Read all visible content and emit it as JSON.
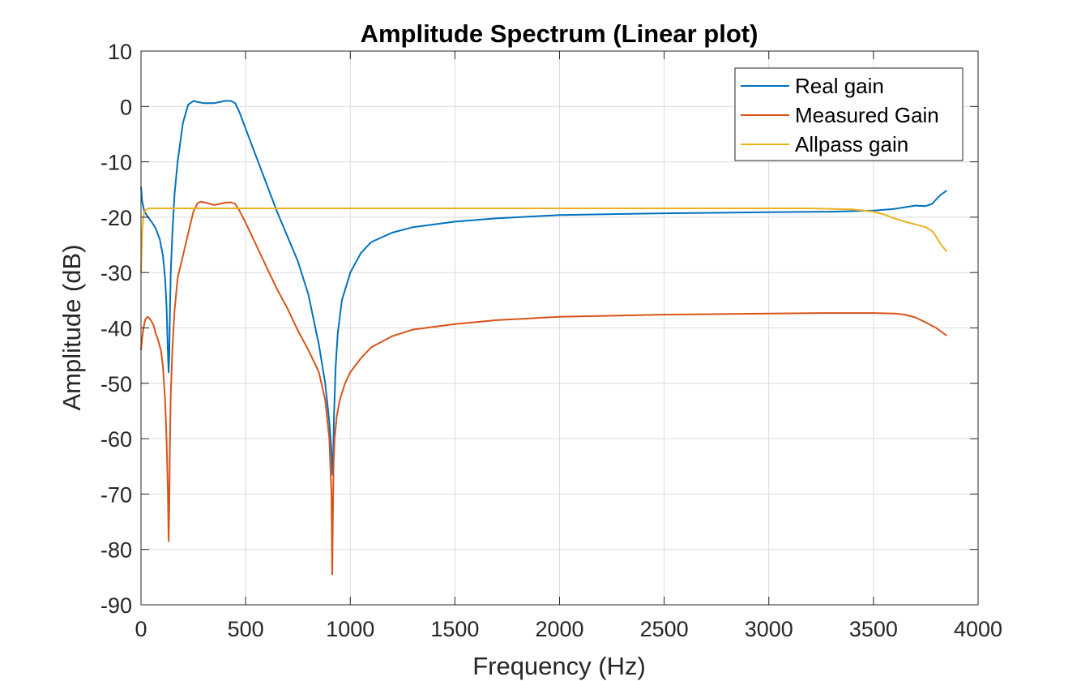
{
  "chart_data": {
    "type": "line",
    "title": "Amplitude Spectrum (Linear plot)",
    "xlabel": "Frequency (Hz)",
    "ylabel": "Amplitude (dB)",
    "xlim": [
      0,
      4000
    ],
    "ylim": [
      -90,
      10
    ],
    "xticks": [
      0,
      500,
      1000,
      1500,
      2000,
      2500,
      3000,
      3500,
      4000
    ],
    "yticks": [
      10,
      0,
      -10,
      -20,
      -30,
      -40,
      -50,
      -60,
      -70,
      -80,
      -90
    ],
    "xtick_labels": [
      "0",
      "500",
      "1000",
      "1500",
      "2000",
      "2500",
      "3000",
      "3500",
      "4000"
    ],
    "ytick_labels": [
      "10",
      "0",
      "-10",
      "-20",
      "-30",
      "-40",
      "-50",
      "-60",
      "-70",
      "-80",
      "-90"
    ],
    "grid": true,
    "legend_position": "top-right",
    "series": [
      {
        "name": "Real gain",
        "color": "#0072BD",
        "x": [
          0,
          5,
          15,
          30,
          50,
          70,
          90,
          105,
          115,
          122,
          128,
          132,
          135,
          138,
          142,
          150,
          160,
          175,
          200,
          225,
          250,
          270,
          285,
          300,
          320,
          350,
          400,
          430,
          450,
          470,
          500,
          550,
          600,
          650,
          700,
          750,
          800,
          850,
          880,
          900,
          910,
          915,
          918,
          922,
          930,
          940,
          960,
          1000,
          1050,
          1100,
          1200,
          1300,
          1500,
          1700,
          2000,
          2500,
          3000,
          3300,
          3500,
          3600,
          3650,
          3700,
          3750,
          3780,
          3800,
          3820,
          3850
        ],
        "y": [
          -14.5,
          -17,
          -18.8,
          -19.8,
          -20.8,
          -22,
          -24,
          -27,
          -31,
          -36,
          -44,
          -48,
          -45,
          -38,
          -30,
          -23,
          -16,
          -10,
          -3,
          0.3,
          1,
          0.8,
          0.7,
          0.6,
          0.6,
          0.6,
          1,
          1,
          0.6,
          -1,
          -4,
          -9,
          -14,
          -19,
          -23.5,
          -28,
          -34,
          -43,
          -50,
          -57,
          -62,
          -66.5,
          -64,
          -56,
          -47,
          -41,
          -35,
          -30,
          -26.5,
          -24.5,
          -22.8,
          -21.8,
          -20.8,
          -20.2,
          -19.6,
          -19.3,
          -19.1,
          -19,
          -18.8,
          -18.5,
          -18.2,
          -17.9,
          -18,
          -17.6,
          -16.8,
          -16,
          -15.2
        ]
      },
      {
        "name": "Measured Gain",
        "color": "#D95319",
        "x": [
          0,
          5,
          12,
          20,
          30,
          40,
          50,
          60,
          70,
          80,
          95,
          105,
          115,
          122,
          128,
          132,
          135,
          138,
          142,
          150,
          160,
          175,
          200,
          225,
          250,
          270,
          285,
          300,
          320,
          350,
          400,
          430,
          450,
          470,
          500,
          550,
          600,
          650,
          700,
          750,
          800,
          850,
          880,
          900,
          910,
          914,
          917,
          920,
          925,
          935,
          950,
          975,
          1000,
          1050,
          1100,
          1200,
          1300,
          1500,
          1700,
          2000,
          2500,
          3000,
          3300,
          3500,
          3600,
          3650,
          3700,
          3750,
          3800,
          3850
        ],
        "y": [
          -44,
          -42,
          -40,
          -38.5,
          -38,
          -38.2,
          -38.8,
          -39.5,
          -41,
          -42,
          -44,
          -47,
          -53,
          -60,
          -69,
          -78.5,
          -72,
          -62,
          -52,
          -44,
          -37,
          -31,
          -27,
          -23,
          -19,
          -17.5,
          -17.2,
          -17.3,
          -17.5,
          -17.8,
          -17.4,
          -17.3,
          -17.6,
          -18.8,
          -21,
          -25,
          -29,
          -33,
          -36.5,
          -40.5,
          -44,
          -48,
          -53,
          -60,
          -70,
          -84.5,
          -74,
          -65,
          -60,
          -56,
          -53,
          -50,
          -48,
          -45.5,
          -43.5,
          -41.5,
          -40.3,
          -39.3,
          -38.6,
          -38,
          -37.6,
          -37.4,
          -37.3,
          -37.3,
          -37.4,
          -37.6,
          -38.1,
          -39,
          -40,
          -41.4
        ]
      },
      {
        "name": "Allpass gain",
        "color": "#EDB120",
        "x": [
          0,
          3,
          6,
          10,
          15,
          20,
          30,
          40,
          60,
          100,
          200,
          500,
          1000,
          1500,
          2000,
          2500,
          3000,
          3200,
          3300,
          3400,
          3450,
          3500,
          3550,
          3600,
          3650,
          3700,
          3750,
          3780,
          3800,
          3820,
          3850
        ],
        "y": [
          -30,
          -26,
          -22.5,
          -20.5,
          -19.2,
          -18.8,
          -18.5,
          -18.4,
          -18.4,
          -18.4,
          -18.4,
          -18.4,
          -18.4,
          -18.4,
          -18.4,
          -18.4,
          -18.4,
          -18.4,
          -18.5,
          -18.6,
          -18.8,
          -19,
          -19.5,
          -20.2,
          -20.8,
          -21.3,
          -21.8,
          -22.5,
          -23.5,
          -24.8,
          -26.2
        ]
      }
    ]
  }
}
